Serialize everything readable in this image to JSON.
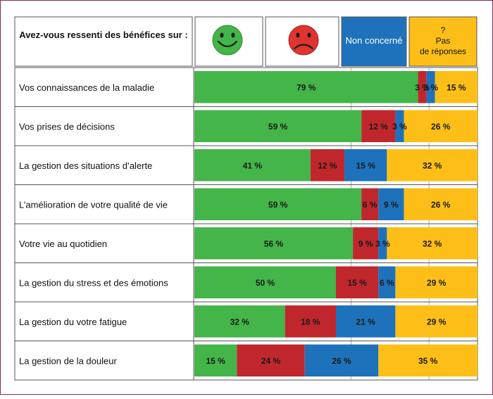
{
  "chart_data": {
    "type": "bar",
    "stacked": true,
    "orientation": "horizontal",
    "question": "Avez-vous ressenti des bénéfices sur :",
    "legend": [
      {
        "key": "positive",
        "icon": "happy-face-icon",
        "label": "",
        "color": "#44b549"
      },
      {
        "key": "negative",
        "icon": "sad-face-icon",
        "label": "",
        "color": "#c0272d"
      },
      {
        "key": "non_concerne",
        "label": "Non concerné",
        "color": "#1e72bb"
      },
      {
        "key": "pas_de_reponses",
        "label_mark": "?",
        "label_lines": [
          "Pas",
          "de réponses"
        ],
        "color": "#fdbf17"
      }
    ],
    "categories": [
      "Vos connaissances de la maladie",
      "Vos prises de décisions",
      "La gestion des situations d’alerte",
      "L’amélioration de votre qualité de vie",
      "Votre vie au quotidien",
      "La gestion du stress et des émotions",
      "La gestion du votre fatigue",
      "La gestion de la douleur"
    ],
    "series": [
      {
        "key": "positive",
        "values": [
          79,
          59,
          41,
          59,
          56,
          50,
          32,
          15
        ],
        "color": "#44b549"
      },
      {
        "key": "negative",
        "values": [
          3,
          12,
          12,
          6,
          9,
          15,
          18,
          24
        ],
        "color": "#c0272d"
      },
      {
        "key": "non_concerne",
        "values": [
          3,
          3,
          15,
          9,
          3,
          6,
          21,
          26
        ],
        "color": "#1e72bb"
      },
      {
        "key": "pas_de_reponses",
        "values": [
          15,
          26,
          32,
          26,
          32,
          29,
          29,
          35
        ],
        "color": "#fdbf17"
      }
    ],
    "data_labels": [
      [
        "79 %",
        "3 %",
        "3 %",
        "15 %"
      ],
      [
        "59 %",
        "12 %",
        "3 %",
        "26 %"
      ],
      [
        "41 %",
        "12 %",
        "15 %",
        "32 %"
      ],
      [
        "59 %",
        "6 %",
        "9 %",
        "26 %"
      ],
      [
        "56 %",
        "9 %",
        "3 %",
        "32 %"
      ],
      [
        "50 %",
        "15 %",
        "6 %",
        "29 %"
      ],
      [
        "32 %",
        "18 %",
        "21 %",
        "29 %"
      ],
      [
        "15 %",
        "24 %",
        "26 %",
        "35 %"
      ]
    ],
    "unit": "%",
    "xlim": [
      0,
      100
    ]
  }
}
